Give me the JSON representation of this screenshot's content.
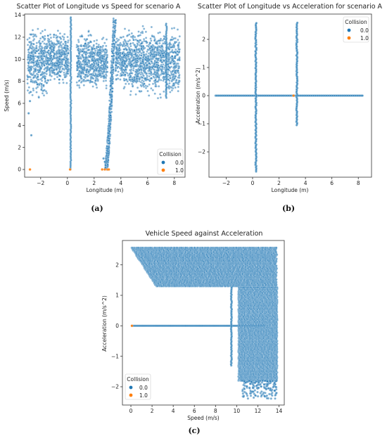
{
  "colors": {
    "collision_0": "#1f77b4",
    "collision_1": "#ff7f0e"
  },
  "chart_data": [
    {
      "type": "scatter",
      "title": "Scatter Plot of Longitude vs Speed for scenario A",
      "xlabel": "Longitude (m)",
      "ylabel": "Speed (m/s)",
      "xlim": [
        -3.2,
        8.8
      ],
      "ylim": [
        -0.7,
        14.1
      ],
      "xticks": [
        -2,
        0,
        2,
        4,
        6,
        8
      ],
      "yticks": [
        0,
        2,
        4,
        6,
        8,
        10,
        12,
        14
      ],
      "legend": {
        "title": "Collision",
        "placement": "lower-right",
        "entries": [
          "0.0",
          "1.0"
        ]
      },
      "caption": "(a)",
      "series": [
        {
          "name": "0.0",
          "clusters": [
            {
              "x": [
                -3.0,
                -1.4
              ],
              "y": [
                6.0,
                13.5
              ]
            },
            {
              "x": [
                -1.4,
                0.1
              ],
              "y": [
                7.0,
                13.0
              ]
            },
            {
              "x": [
                0.7,
                2.4
              ],
              "y": [
                6.5,
                13.0
              ]
            },
            {
              "x": [
                2.4,
                3.0
              ],
              "y": [
                7.0,
                12.5
              ]
            },
            {
              "x": [
                3.6,
                4.2
              ],
              "y": [
                7.5,
                12.5
              ]
            },
            {
              "x": [
                4.2,
                8.4
              ],
              "y": [
                6.0,
                13.5
              ]
            }
          ],
          "vertical_lines": [
            {
              "x": 0.25,
              "y": [
                0,
                13.9
              ]
            },
            {
              "x": 7.4,
              "y": [
                6.5,
                13.3
              ]
            }
          ],
          "outliers": [
            [
              -2.7,
              3.1
            ],
            [
              -2.9,
              5.1
            ],
            [
              -2.8,
              6.2
            ],
            [
              2.7,
              1.0
            ],
            [
              2.8,
              0.7
            ]
          ],
          "ramp": [
            [
              2.9,
              0.1
            ],
            [
              3.05,
              2.0
            ],
            [
              3.2,
              5.0
            ],
            [
              3.35,
              9.0
            ],
            [
              3.55,
              13.8
            ]
          ]
        },
        {
          "name": "1.0",
          "points": [
            [
              -2.8,
              0
            ],
            [
              0.2,
              0
            ],
            [
              2.6,
              0
            ],
            [
              2.8,
              0
            ],
            [
              3.0,
              0
            ],
            [
              3.1,
              0
            ]
          ]
        }
      ]
    },
    {
      "type": "scatter",
      "title": "Scatter Plot of Longitude vs Acceleration for scenario A",
      "xlabel": "Longitude (m)",
      "ylabel": "Acceleration (m/s^2)",
      "xlim": [
        -3.3,
        9.0
      ],
      "ylim": [
        -2.9,
        2.9
      ],
      "xticks": [
        -2,
        0,
        2,
        4,
        6,
        8
      ],
      "yticks": [
        -2,
        -1,
        0,
        1,
        2
      ],
      "legend": {
        "title": "Collision",
        "placement": "upper-right",
        "entries": [
          "0.0",
          "1.0"
        ]
      },
      "caption": "(b)",
      "series": [
        {
          "name": "0.0",
          "horizontal_line": {
            "y": 0,
            "x": [
              -2.8,
              8.4
            ]
          },
          "vertical_lines": [
            {
              "x": 0.25,
              "y": [
                -2.7,
                2.6
              ]
            },
            {
              "x": 3.35,
              "y": [
                -1.05,
                2.6
              ]
            }
          ]
        },
        {
          "name": "1.0",
          "points": [
            [
              3.1,
              0
            ]
          ]
        }
      ]
    },
    {
      "type": "scatter",
      "title": "Vehicle Speed against Acceleration",
      "xlabel": "Speed (m/s)",
      "ylabel": "Acceleration (m/s^2)",
      "xlim": [
        -0.8,
        14.5
      ],
      "ylim": [
        -2.6,
        2.8
      ],
      "xticks": [
        0,
        2,
        4,
        6,
        8,
        10,
        12,
        14
      ],
      "yticks": [
        -2,
        -1,
        0,
        1,
        2
      ],
      "legend": {
        "title": "Collision",
        "placement": "lower-left",
        "entries": [
          "0.0",
          "1.0"
        ]
      },
      "caption": "(c)",
      "series": [
        {
          "name": "0.0",
          "upper_band": {
            "y": [
              1.3,
              2.6
            ],
            "x_left_at_top": 0.0,
            "x_left_at_bottom": 2.4,
            "x_right": 13.8
          },
          "horizontal_line": {
            "y": 0,
            "x": [
              0.1,
              12.6
            ]
          },
          "vertical_line": {
            "x": 9.5,
            "y": [
              -1.3,
              1.3
            ]
          },
          "lower_block": {
            "x": [
              10.2,
              13.8
            ],
            "y": [
              -1.8,
              1.3
            ]
          },
          "scatter_tail": {
            "x": [
              10.5,
              13.8
            ],
            "y": [
              -2.4,
              -1.8
            ]
          }
        },
        {
          "name": "1.0",
          "points": [
            [
              0.1,
              0
            ]
          ]
        }
      ]
    }
  ]
}
